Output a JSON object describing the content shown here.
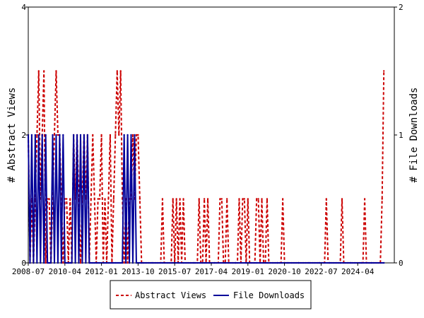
{
  "chart_data": {
    "type": "line",
    "title": "",
    "ylabel_left": "# Abstract Views",
    "ylabel_right": "# File Downloads",
    "x_start": "2008-07",
    "x_end": "2026-01",
    "x_ticks": [
      "2008-07",
      "2010-04",
      "2012-01",
      "2013-10",
      "2015-07",
      "2017-04",
      "2019-01",
      "2020-10",
      "2022-07",
      "2024-04"
    ],
    "ylim_left": [
      0,
      4
    ],
    "ylim_right": [
      0,
      2
    ],
    "yticks_left": [
      "0",
      "2",
      "4"
    ],
    "yticks_right": [
      "0",
      "1",
      "2"
    ],
    "grid": false,
    "legend_position": "bottom-center",
    "series": [
      {
        "name": "Abstract Views",
        "axis": "left",
        "color": "#cc0000",
        "style": "dashed",
        "points": [
          [
            "2008-07",
            2
          ],
          [
            "2008-08",
            0
          ],
          [
            "2008-09",
            1
          ],
          [
            "2008-10",
            0
          ],
          [
            "2008-11",
            1
          ],
          [
            "2008-12",
            2
          ],
          [
            "2009-01",
            3
          ],
          [
            "2009-02",
            1
          ],
          [
            "2009-03",
            2
          ],
          [
            "2009-04",
            3
          ],
          [
            "2009-05",
            0
          ],
          [
            "2009-06",
            1
          ],
          [
            "2009-07",
            1
          ],
          [
            "2009-08",
            0
          ],
          [
            "2009-09",
            1
          ],
          [
            "2009-10",
            2
          ],
          [
            "2009-11",
            3
          ],
          [
            "2009-12",
            2
          ],
          [
            "2010-01",
            2
          ],
          [
            "2010-02",
            1
          ],
          [
            "2010-03",
            0
          ],
          [
            "2010-04",
            1
          ],
          [
            "2010-05",
            1
          ],
          [
            "2010-06",
            0
          ],
          [
            "2010-07",
            1
          ],
          [
            "2010-08",
            0
          ],
          [
            "2010-09",
            2
          ],
          [
            "2010-10",
            1
          ],
          [
            "2010-11",
            2
          ],
          [
            "2010-12",
            1
          ],
          [
            "2011-01",
            0
          ],
          [
            "2011-02",
            1
          ],
          [
            "2011-03",
            2
          ],
          [
            "2011-04",
            1
          ],
          [
            "2011-05",
            2
          ],
          [
            "2011-06",
            0
          ],
          [
            "2011-07",
            1
          ],
          [
            "2011-08",
            2
          ],
          [
            "2011-09",
            1
          ],
          [
            "2011-10",
            0
          ],
          [
            "2011-11",
            1
          ],
          [
            "2011-12",
            1
          ],
          [
            "2012-01",
            2
          ],
          [
            "2012-02",
            0
          ],
          [
            "2012-03",
            1
          ],
          [
            "2012-04",
            0
          ],
          [
            "2012-05",
            1
          ],
          [
            "2012-06",
            2
          ],
          [
            "2012-07",
            0
          ],
          [
            "2012-08",
            1
          ],
          [
            "2012-09",
            2
          ],
          [
            "2012-10",
            3
          ],
          [
            "2012-11",
            2
          ],
          [
            "2012-12",
            3
          ],
          [
            "2013-01",
            1
          ],
          [
            "2013-02",
            0
          ],
          [
            "2013-03",
            1
          ],
          [
            "2013-04",
            0
          ],
          [
            "2013-05",
            1
          ],
          [
            "2013-06",
            1
          ],
          [
            "2013-07",
            2
          ],
          [
            "2013-08",
            1
          ],
          [
            "2013-09",
            2
          ],
          [
            "2013-10",
            2
          ],
          [
            "2013-11",
            1
          ],
          [
            "2013-12",
            0
          ],
          [
            "2014-01",
            0
          ],
          [
            "2014-02",
            0
          ],
          [
            "2014-03",
            0
          ],
          [
            "2014-04",
            0
          ],
          [
            "2014-05",
            0
          ],
          [
            "2014-06",
            0
          ],
          [
            "2014-07",
            0
          ],
          [
            "2014-08",
            0
          ],
          [
            "2014-09",
            0
          ],
          [
            "2014-10",
            0
          ],
          [
            "2014-11",
            0
          ],
          [
            "2014-12",
            1
          ],
          [
            "2015-01",
            0
          ],
          [
            "2015-02",
            0
          ],
          [
            "2015-03",
            0
          ],
          [
            "2015-04",
            0
          ],
          [
            "2015-05",
            0
          ],
          [
            "2015-06",
            1
          ],
          [
            "2015-07",
            0
          ],
          [
            "2015-08",
            1
          ],
          [
            "2015-09",
            0
          ],
          [
            "2015-10",
            1
          ],
          [
            "2015-11",
            0
          ],
          [
            "2015-12",
            1
          ],
          [
            "2016-01",
            0
          ],
          [
            "2016-02",
            0
          ],
          [
            "2016-03",
            0
          ],
          [
            "2016-04",
            0
          ],
          [
            "2016-05",
            0
          ],
          [
            "2016-06",
            0
          ],
          [
            "2016-07",
            0
          ],
          [
            "2016-08",
            0
          ],
          [
            "2016-09",
            1
          ],
          [
            "2016-10",
            0
          ],
          [
            "2016-11",
            0
          ],
          [
            "2016-12",
            1
          ],
          [
            "2017-01",
            0
          ],
          [
            "2017-02",
            1
          ],
          [
            "2017-03",
            0
          ],
          [
            "2017-04",
            0
          ],
          [
            "2017-05",
            0
          ],
          [
            "2017-06",
            0
          ],
          [
            "2017-07",
            0
          ],
          [
            "2017-08",
            0
          ],
          [
            "2017-09",
            1
          ],
          [
            "2017-10",
            1
          ],
          [
            "2017-11",
            0
          ],
          [
            "2017-12",
            0
          ],
          [
            "2018-01",
            1
          ],
          [
            "2018-02",
            0
          ],
          [
            "2018-03",
            0
          ],
          [
            "2018-04",
            0
          ],
          [
            "2018-05",
            0
          ],
          [
            "2018-06",
            0
          ],
          [
            "2018-07",
            0
          ],
          [
            "2018-08",
            1
          ],
          [
            "2018-09",
            0
          ],
          [
            "2018-10",
            1
          ],
          [
            "2018-11",
            1
          ],
          [
            "2018-12",
            0
          ],
          [
            "2019-01",
            1
          ],
          [
            "2019-02",
            0
          ],
          [
            "2019-03",
            0
          ],
          [
            "2019-04",
            0
          ],
          [
            "2019-05",
            0
          ],
          [
            "2019-06",
            1
          ],
          [
            "2019-07",
            1
          ],
          [
            "2019-08",
            0
          ],
          [
            "2019-09",
            1
          ],
          [
            "2019-10",
            0
          ],
          [
            "2019-11",
            0
          ],
          [
            "2019-12",
            1
          ],
          [
            "2020-01",
            0
          ],
          [
            "2020-02",
            0
          ],
          [
            "2020-03",
            0
          ],
          [
            "2020-04",
            0
          ],
          [
            "2020-05",
            0
          ],
          [
            "2020-06",
            0
          ],
          [
            "2020-07",
            0
          ],
          [
            "2020-08",
            0
          ],
          [
            "2020-09",
            1
          ],
          [
            "2020-10",
            0
          ],
          [
            "2020-11",
            0
          ],
          [
            "2020-12",
            0
          ],
          [
            "2021-01",
            0
          ],
          [
            "2021-02",
            0
          ],
          [
            "2021-03",
            0
          ],
          [
            "2021-04",
            0
          ],
          [
            "2021-05",
            0
          ],
          [
            "2021-06",
            0
          ],
          [
            "2021-07",
            0
          ],
          [
            "2021-08",
            0
          ],
          [
            "2021-09",
            0
          ],
          [
            "2021-10",
            0
          ],
          [
            "2021-11",
            0
          ],
          [
            "2021-12",
            0
          ],
          [
            "2022-01",
            0
          ],
          [
            "2022-02",
            0
          ],
          [
            "2022-03",
            0
          ],
          [
            "2022-04",
            0
          ],
          [
            "2022-05",
            0
          ],
          [
            "2022-06",
            0
          ],
          [
            "2022-07",
            0
          ],
          [
            "2022-08",
            0
          ],
          [
            "2022-09",
            0
          ],
          [
            "2022-10",
            1
          ],
          [
            "2022-11",
            0
          ],
          [
            "2022-12",
            0
          ],
          [
            "2023-01",
            0
          ],
          [
            "2023-02",
            0
          ],
          [
            "2023-03",
            0
          ],
          [
            "2023-04",
            0
          ],
          [
            "2023-05",
            0
          ],
          [
            "2023-06",
            0
          ],
          [
            "2023-07",
            1
          ],
          [
            "2023-08",
            0
          ],
          [
            "2023-09",
            0
          ],
          [
            "2023-10",
            0
          ],
          [
            "2023-11",
            0
          ],
          [
            "2023-12",
            0
          ],
          [
            "2024-01",
            0
          ],
          [
            "2024-02",
            0
          ],
          [
            "2024-03",
            0
          ],
          [
            "2024-04",
            0
          ],
          [
            "2024-05",
            0
          ],
          [
            "2024-06",
            0
          ],
          [
            "2024-07",
            0
          ],
          [
            "2024-08",
            1
          ],
          [
            "2024-09",
            0
          ],
          [
            "2024-10",
            0
          ],
          [
            "2024-11",
            0
          ],
          [
            "2024-12",
            0
          ],
          [
            "2025-01",
            0
          ],
          [
            "2025-02",
            0
          ],
          [
            "2025-03",
            0
          ],
          [
            "2025-04",
            0
          ],
          [
            "2025-05",
            0
          ],
          [
            "2025-06",
            1
          ],
          [
            "2025-07",
            3
          ]
        ]
      },
      {
        "name": "File Downloads",
        "axis": "right",
        "color": "#000099",
        "style": "solid",
        "points": [
          [
            "2008-07",
            1
          ],
          [
            "2008-08",
            0
          ],
          [
            "2008-09",
            1
          ],
          [
            "2008-10",
            0
          ],
          [
            "2008-11",
            1
          ],
          [
            "2008-12",
            0
          ],
          [
            "2009-01",
            1
          ],
          [
            "2009-02",
            0
          ],
          [
            "2009-03",
            1
          ],
          [
            "2009-04",
            0
          ],
          [
            "2009-05",
            1
          ],
          [
            "2009-06",
            0
          ],
          [
            "2009-07",
            0
          ],
          [
            "2009-08",
            0
          ],
          [
            "2009-09",
            1
          ],
          [
            "2009-10",
            0
          ],
          [
            "2009-11",
            1
          ],
          [
            "2009-12",
            0
          ],
          [
            "2010-01",
            1
          ],
          [
            "2010-02",
            0
          ],
          [
            "2010-03",
            1
          ],
          [
            "2010-04",
            0
          ],
          [
            "2010-05",
            0
          ],
          [
            "2010-06",
            0
          ],
          [
            "2010-07",
            0
          ],
          [
            "2010-08",
            0
          ],
          [
            "2010-09",
            1
          ],
          [
            "2010-10",
            0
          ],
          [
            "2010-11",
            1
          ],
          [
            "2010-12",
            0
          ],
          [
            "2011-01",
            1
          ],
          [
            "2011-02",
            0
          ],
          [
            "2011-03",
            1
          ],
          [
            "2011-04",
            0
          ],
          [
            "2011-05",
            1
          ],
          [
            "2011-06",
            0
          ],
          [
            "2011-07",
            0
          ],
          [
            "2011-08",
            0
          ],
          [
            "2011-09",
            0
          ],
          [
            "2011-10",
            0
          ],
          [
            "2011-11",
            0
          ],
          [
            "2011-12",
            0
          ],
          [
            "2012-01",
            0
          ],
          [
            "2012-02",
            0
          ],
          [
            "2012-03",
            0
          ],
          [
            "2012-04",
            0
          ],
          [
            "2012-05",
            0
          ],
          [
            "2012-06",
            0
          ],
          [
            "2012-07",
            0
          ],
          [
            "2012-08",
            0
          ],
          [
            "2012-09",
            0
          ],
          [
            "2012-10",
            0
          ],
          [
            "2012-11",
            0
          ],
          [
            "2012-12",
            0
          ],
          [
            "2013-01",
            0
          ],
          [
            "2013-02",
            1
          ],
          [
            "2013-03",
            0
          ],
          [
            "2013-04",
            1
          ],
          [
            "2013-05",
            0
          ],
          [
            "2013-06",
            1
          ],
          [
            "2013-07",
            0
          ],
          [
            "2013-08",
            1
          ],
          [
            "2013-09",
            0
          ],
          [
            "2013-10",
            0
          ],
          [
            "2013-11",
            0
          ],
          [
            "2013-12",
            0
          ],
          [
            "2014-01",
            0
          ],
          [
            "2014-06",
            0
          ],
          [
            "2014-12",
            0
          ],
          [
            "2015-06",
            0
          ],
          [
            "2015-12",
            0
          ],
          [
            "2016-06",
            0
          ],
          [
            "2016-12",
            0
          ],
          [
            "2017-06",
            0
          ],
          [
            "2017-12",
            0
          ],
          [
            "2018-06",
            0
          ],
          [
            "2018-12",
            0
          ],
          [
            "2019-06",
            0
          ],
          [
            "2019-12",
            0
          ],
          [
            "2020-06",
            0
          ],
          [
            "2020-12",
            0
          ],
          [
            "2021-06",
            0
          ],
          [
            "2021-12",
            0
          ],
          [
            "2022-06",
            0
          ],
          [
            "2022-12",
            0
          ],
          [
            "2023-06",
            0
          ],
          [
            "2023-12",
            0
          ],
          [
            "2024-06",
            0
          ],
          [
            "2024-12",
            0
          ],
          [
            "2025-07",
            0
          ]
        ]
      }
    ]
  }
}
